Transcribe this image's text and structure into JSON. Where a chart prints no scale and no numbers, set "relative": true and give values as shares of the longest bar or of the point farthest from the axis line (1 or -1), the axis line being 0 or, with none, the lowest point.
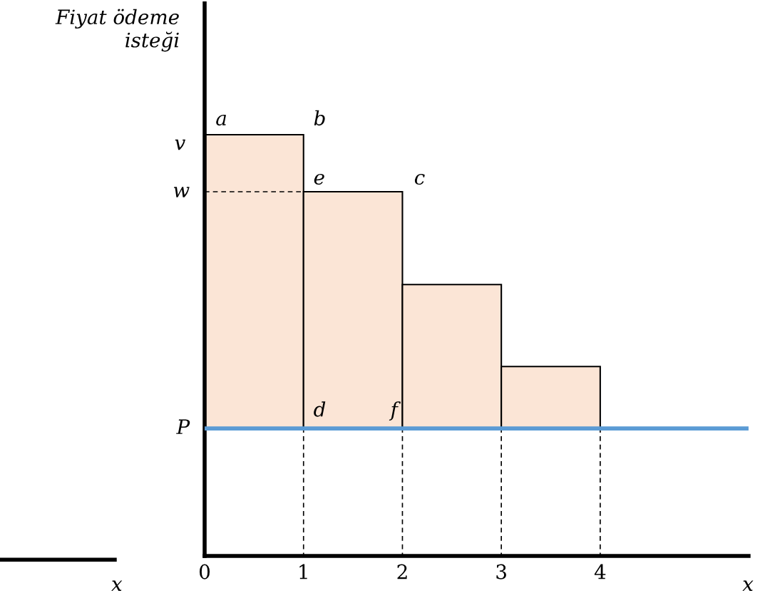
{
  "chart_data": {
    "type": "bar",
    "relative": true,
    "x": [
      0.5,
      1.5,
      2.5,
      3.5
    ],
    "series": [
      {
        "color": "#fbe5d6",
        "values": [
          1,
          0.806,
          0.49,
          0.211
        ]
      }
    ],
    "xlim": [
      0,
      5.5
    ],
    "xticks": [
      0,
      1,
      2,
      3,
      4
    ],
    "xlabel": "x",
    "ylabel": "Fiyat ödeme isteği",
    "grid": false,
    "ref_lines": [
      {
        "axis": "y",
        "value": 0,
        "label": "P",
        "color": "#5b9bd5",
        "line_style": "solid"
      },
      {
        "axis": "y",
        "value": 0.806,
        "label": "w",
        "color": "#000000",
        "line_style": "dashed"
      }
    ],
    "annotations": [
      "v",
      "a",
      "b",
      "e",
      "c",
      "d",
      "f",
      "x"
    ]
  }
}
